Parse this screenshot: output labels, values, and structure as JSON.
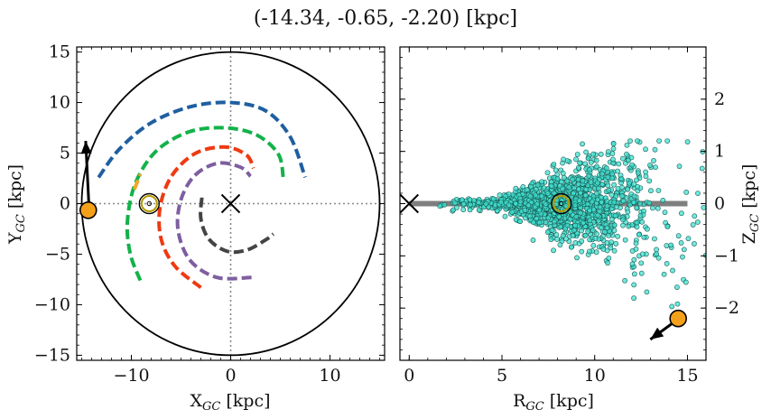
{
  "figure_title": "(-14.34, -0.65, -2.20) [kpc]",
  "colors": {
    "arm_blue": "#1f5fa0",
    "arm_green": "#13b24a",
    "arm_red": "#ee3a12",
    "arm_purple": "#7e5ea0",
    "arm_gray": "#444444",
    "arm_orange": "#f5a623",
    "sun_marker": "#f5a01a",
    "scatter_fill": "#40e0d0",
    "scatter_edge": "#1a5c55",
    "plane_line": "#7f7f7f",
    "circle_marker": "#b39a00"
  },
  "chart_data": [
    {
      "type": "line",
      "name": "xy-plane",
      "xlabel": "X_GC [kpc]",
      "ylabel": "Y_GC [kpc]",
      "xlim": [
        -15.5,
        15.5
      ],
      "ylim": [
        -15.5,
        15.5
      ],
      "xticks": [
        -10,
        0,
        10
      ],
      "yticks": [
        15,
        10,
        5,
        0,
        -5,
        -10,
        -15
      ],
      "xtick_labels": [
        "−10",
        "0",
        "10"
      ],
      "ytick_labels": [
        "15",
        "10",
        "5",
        "0",
        "−5",
        "−10",
        "−15"
      ],
      "grid": false,
      "boundary_circle_radius": 15,
      "galactic_center": [
        0,
        0
      ],
      "sun": [
        -8.2,
        0
      ],
      "object": [
        -14.34,
        -0.65
      ],
      "object_arrow_tip": [
        -14.6,
        6.2
      ],
      "series": [
        {
          "color_key": "arm_blue",
          "points": [
            [
              -13.3,
              2.6
            ],
            [
              -11.2,
              5.4
            ],
            [
              -8.0,
              8.0
            ],
            [
              -4.0,
              9.6
            ],
            [
              0.0,
              10.0
            ],
            [
              3.5,
              9.2
            ],
            [
              6.0,
              6.6
            ],
            [
              7.5,
              2.6
            ]
          ]
        },
        {
          "color_key": "arm_green",
          "points": [
            [
              -9.1,
              -7.6
            ],
            [
              -10.1,
              -5.0
            ],
            [
              -10.4,
              -1.8
            ],
            [
              -9.6,
              2.0
            ],
            [
              -7.5,
              5.2
            ],
            [
              -4.2,
              7.1
            ],
            [
              -0.6,
              7.5
            ],
            [
              2.6,
              6.8
            ],
            [
              4.8,
              4.9
            ],
            [
              5.3,
              2.5
            ]
          ]
        },
        {
          "color_key": "arm_red",
          "points": [
            [
              -3.0,
              -8.3
            ],
            [
              -5.6,
              -6.2
            ],
            [
              -7.0,
              -3.5
            ],
            [
              -7.1,
              -0.3
            ],
            [
              -5.9,
              2.8
            ],
            [
              -3.5,
              5.0
            ],
            [
              -0.5,
              5.6
            ],
            [
              1.6,
              4.8
            ],
            [
              2.3,
              3.5
            ]
          ]
        },
        {
          "color_key": "arm_purple",
          "points": [
            [
              2.1,
              -7.3
            ],
            [
              -1.4,
              -7.3
            ],
            [
              -4.1,
              -5.6
            ],
            [
              -5.3,
              -2.6
            ],
            [
              -5.0,
              0.4
            ],
            [
              -3.6,
              2.8
            ],
            [
              -1.3,
              4.0
            ],
            [
              1.0,
              3.6
            ],
            [
              2.0,
              2.7
            ]
          ]
        },
        {
          "color_key": "arm_gray",
          "points": [
            [
              -2.9,
              0.6
            ],
            [
              -3.0,
              -1.5
            ],
            [
              -2.2,
              -3.5
            ],
            [
              -0.4,
              -4.7
            ],
            [
              1.6,
              -4.6
            ],
            [
              3.5,
              -3.6
            ],
            [
              4.3,
              -3.0
            ]
          ]
        },
        {
          "color_key": "arm_orange",
          "points": [
            [
              -9.7,
              1.4
            ],
            [
              -9.1,
              2.9
            ]
          ]
        }
      ]
    },
    {
      "type": "scatter",
      "name": "r-z-plane",
      "xlabel": "R_GC [kpc]",
      "ylabel": "Z_GC [kpc]",
      "xlim": [
        -0.5,
        16
      ],
      "ylim": [
        -3,
        3
      ],
      "xticks": [
        0,
        5,
        10,
        15
      ],
      "yticks": [
        2,
        1,
        0,
        -1,
        -2
      ],
      "xtick_labels": [
        "0",
        "5",
        "10",
        "15"
      ],
      "ytick_labels": [
        "2",
        "1",
        "0",
        "−1",
        "−2"
      ],
      "grid": false,
      "galactic_center": [
        0,
        0
      ],
      "sun": [
        8.2,
        0
      ],
      "object": [
        14.5,
        -2.2
      ],
      "object_arrow_tip": [
        13.0,
        -2.6
      ],
      "plane_line": [
        [
          0,
          0
        ],
        [
          15,
          0
        ]
      ],
      "point_count": 1500,
      "r_range": [
        1.5,
        16
      ],
      "z_spread_max": 1.2
    }
  ]
}
